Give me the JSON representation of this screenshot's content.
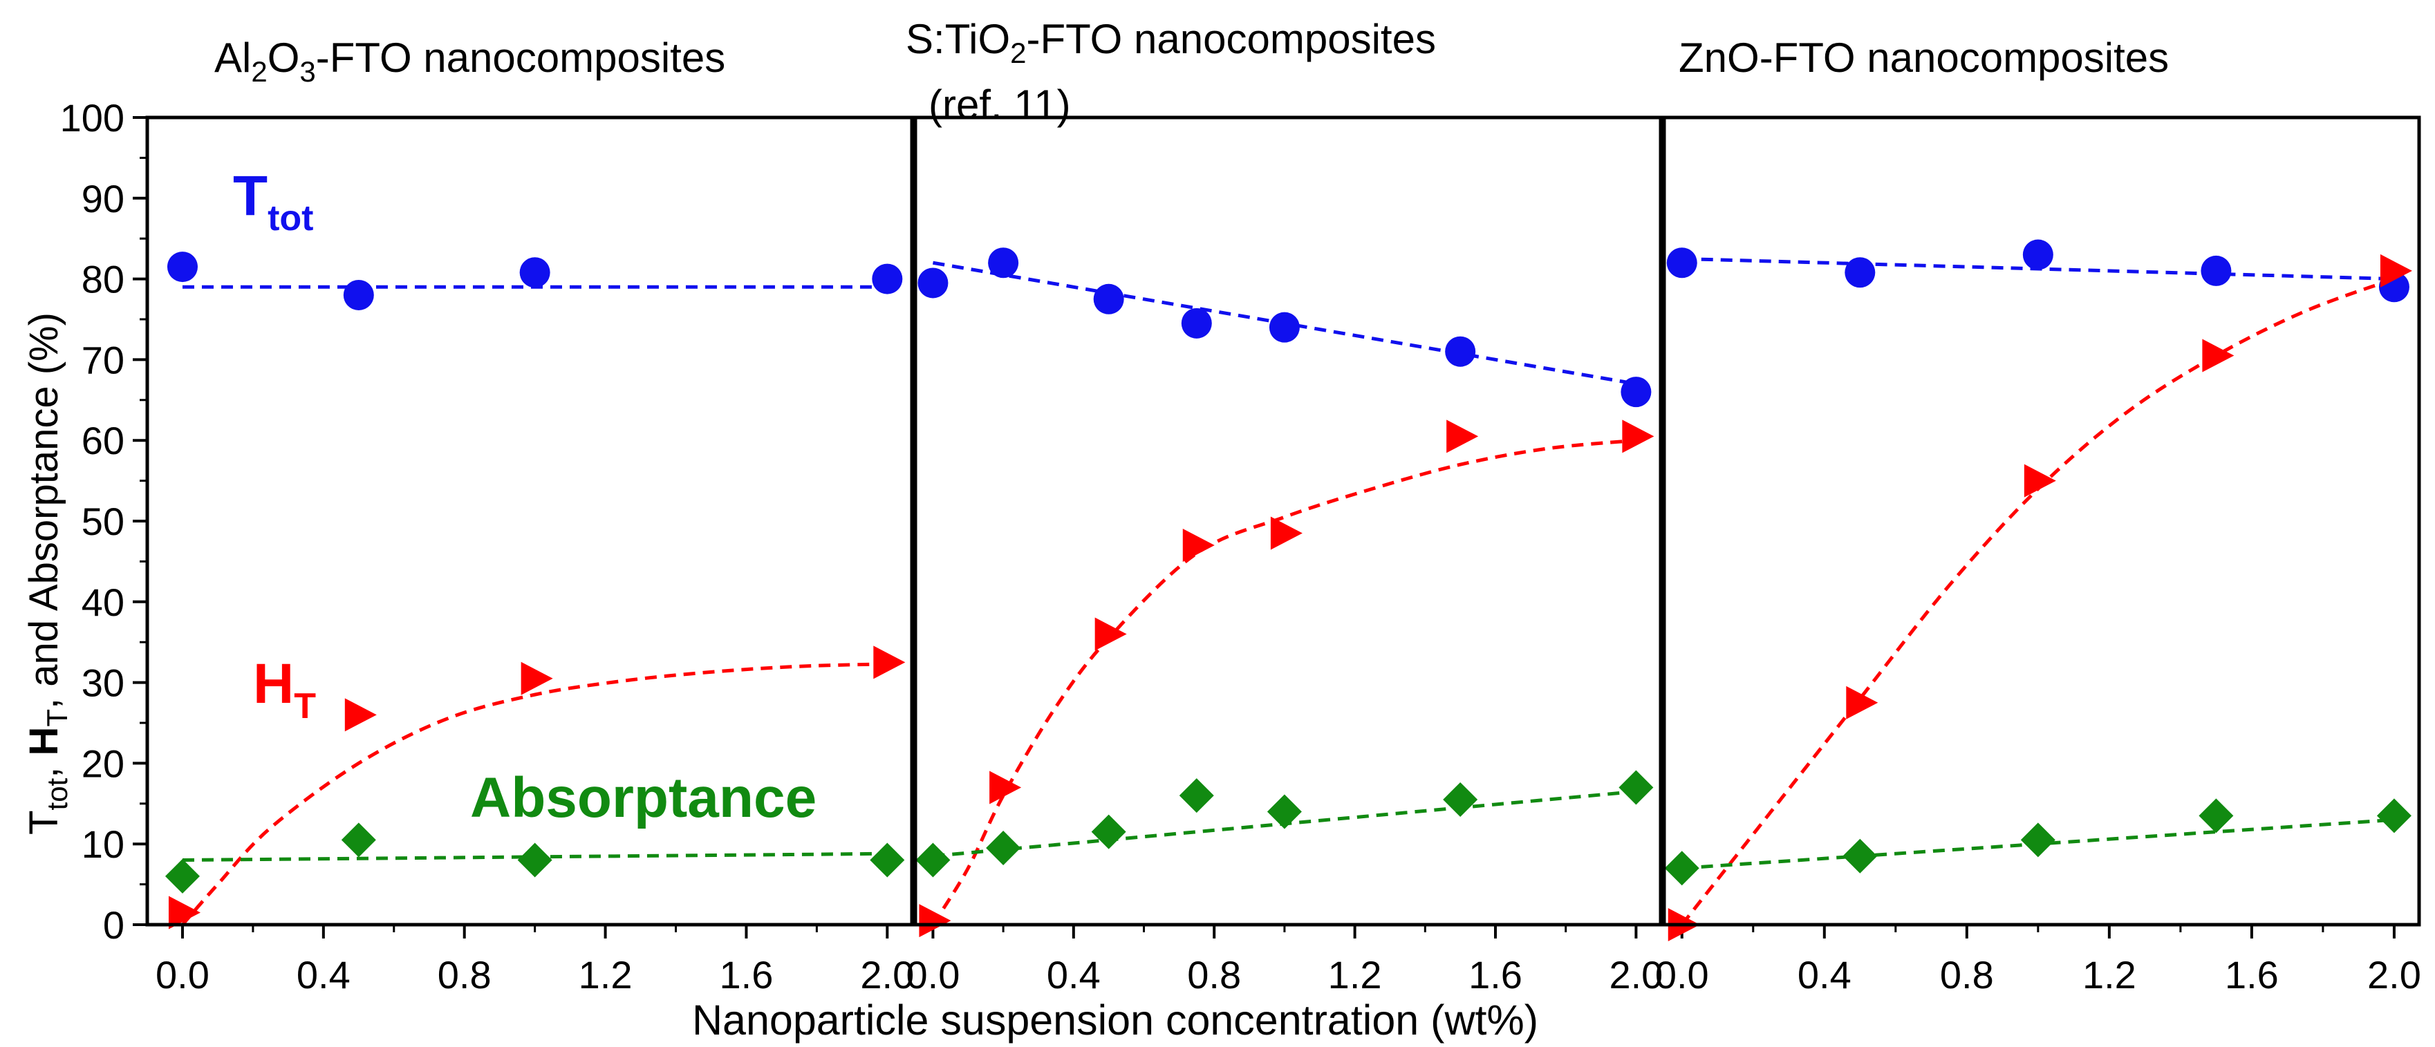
{
  "figure": {
    "ylabel": {
      "p1": "T",
      "p1_sub": "tot",
      "p2": ", ",
      "p3": "H",
      "p3_sub": "T",
      "p4": ", and Absorptance (%)"
    },
    "xlabel": "Nanoparticle suspension concentration (wt%)",
    "y_ticks": [
      "0",
      "10",
      "20",
      "30",
      "40",
      "50",
      "60",
      "70",
      "80",
      "90",
      "100"
    ],
    "x_ticks": [
      "0.0",
      "0.4",
      "0.8",
      "1.2",
      "1.6",
      "2.0"
    ],
    "panel_titles": [
      {
        "pre": "Al",
        "sub1": "2",
        "mid": "O",
        "sub2": "3",
        "post": "-FTO nanocomposites"
      },
      {
        "pre": "S:TiO",
        "sub1": "2",
        "post": "-FTO nanocomposites"
      },
      {
        "text": "ZnO-FTO nanocomposites"
      }
    ],
    "panel_title_ref": "(ref. 11)",
    "annotations": {
      "ttot": "T",
      "ttot_sub": "tot",
      "ht": "H",
      "ht_sub": "T",
      "absorptance": "Absorptance"
    },
    "colors": {
      "ttot": "#1010ee",
      "ht": "#ff0000",
      "absorptance": "#118a11"
    }
  },
  "chart_data": [
    {
      "type": "scatter",
      "title": "Al2O3-FTO nanocomposites",
      "xlabel": "Nanoparticle suspension concentration (wt%)",
      "ylabel": "Ttot, HT, and Absorptance (%)",
      "xlim": [
        -0.1,
        2.07
      ],
      "ylim": [
        0,
        100
      ],
      "series": [
        {
          "name": "Ttot",
          "x": [
            0.0,
            0.5,
            1.0,
            2.0
          ],
          "y": [
            81.5,
            78,
            80.8,
            80
          ],
          "fit": [
            [
              0.0,
              79
            ],
            [
              2.0,
              79
            ]
          ]
        },
        {
          "name": "HT",
          "x": [
            0.0,
            0.5,
            1.0,
            2.0
          ],
          "y": [
            1.5,
            26,
            30.5,
            32.5
          ],
          "fit": [
            [
              0.0,
              0
            ],
            [
              0.1,
              5
            ],
            [
              0.25,
              12
            ],
            [
              0.5,
              20
            ],
            [
              0.75,
              25.5
            ],
            [
              1.0,
              28.5
            ],
            [
              1.25,
              30.2
            ],
            [
              1.5,
              31.3
            ],
            [
              1.75,
              32
            ],
            [
              2.0,
              32.3
            ]
          ]
        },
        {
          "name": "Absorptance",
          "x": [
            0.0,
            0.5,
            1.0,
            2.0
          ],
          "y": [
            6,
            10.5,
            8,
            8
          ],
          "fit": [
            [
              0.0,
              8
            ],
            [
              2.0,
              8.8
            ]
          ]
        }
      ]
    },
    {
      "type": "scatter",
      "title": "S:TiO2-FTO nanocomposites (ref. 11)",
      "xlabel": "Nanoparticle suspension concentration (wt%)",
      "ylabel": "Ttot, HT, and Absorptance (%)",
      "xlim": [
        -0.05,
        2.07
      ],
      "ylim": [
        0,
        100
      ],
      "series": [
        {
          "name": "Ttot",
          "x": [
            0.0,
            0.2,
            0.5,
            0.75,
            1.0,
            1.5,
            2.0
          ],
          "y": [
            79.5,
            82,
            77.5,
            74.5,
            74,
            71,
            66
          ],
          "fit": [
            [
              0.0,
              82
            ],
            [
              2.0,
              67
            ]
          ]
        },
        {
          "name": "HT",
          "x": [
            0.0,
            0.2,
            0.5,
            0.75,
            1.0,
            1.5,
            2.0
          ],
          "y": [
            0.5,
            17,
            36,
            47,
            48.5,
            60.5,
            60.5
          ],
          "fit": [
            [
              0.0,
              0
            ],
            [
              0.1,
              7
            ],
            [
              0.2,
              16
            ],
            [
              0.35,
              27
            ],
            [
              0.5,
              35.5
            ],
            [
              0.75,
              46
            ],
            [
              1.0,
              50.5
            ],
            [
              1.25,
              54
            ],
            [
              1.5,
              57
            ],
            [
              1.75,
              59
            ],
            [
              2.0,
              60
            ]
          ]
        },
        {
          "name": "Absorptance",
          "x": [
            0.0,
            0.2,
            0.5,
            0.75,
            1.0,
            1.5,
            2.0
          ],
          "y": [
            8,
            9.5,
            11.5,
            16,
            14,
            15.5,
            17
          ],
          "fit": [
            [
              0.0,
              8.5
            ],
            [
              2.0,
              16.5
            ]
          ]
        }
      ]
    },
    {
      "type": "scatter",
      "title": "ZnO-FTO nanocomposites",
      "xlabel": "Nanoparticle suspension concentration (wt%)",
      "ylabel": "Ttot, HT, and Absorptance (%)",
      "xlim": [
        -0.05,
        2.07
      ],
      "ylim": [
        0,
        100
      ],
      "series": [
        {
          "name": "Ttot",
          "x": [
            0.0,
            0.5,
            1.0,
            1.5,
            2.0
          ],
          "y": [
            82,
            80.8,
            83,
            81,
            79
          ],
          "fit": [
            [
              0.0,
              82.5
            ],
            [
              2.0,
              80
            ]
          ]
        },
        {
          "name": "HT",
          "x": [
            0.0,
            0.5,
            1.0,
            1.5,
            2.0
          ],
          "y": [
            0,
            27.5,
            55,
            70.5,
            81
          ],
          "fit": [
            [
              0.0,
              0
            ],
            [
              0.25,
              14
            ],
            [
              0.5,
              28
            ],
            [
              0.75,
              42
            ],
            [
              1.0,
              54
            ],
            [
              1.25,
              63.5
            ],
            [
              1.5,
              70.5
            ],
            [
              1.75,
              76
            ],
            [
              2.0,
              80
            ]
          ]
        },
        {
          "name": "Absorptance",
          "x": [
            0.0,
            0.5,
            1.0,
            1.5,
            2.0
          ],
          "y": [
            7,
            8.5,
            10.5,
            13.5,
            13.5
          ],
          "fit": [
            [
              0.0,
              7
            ],
            [
              2.0,
              13
            ]
          ]
        }
      ]
    }
  ]
}
